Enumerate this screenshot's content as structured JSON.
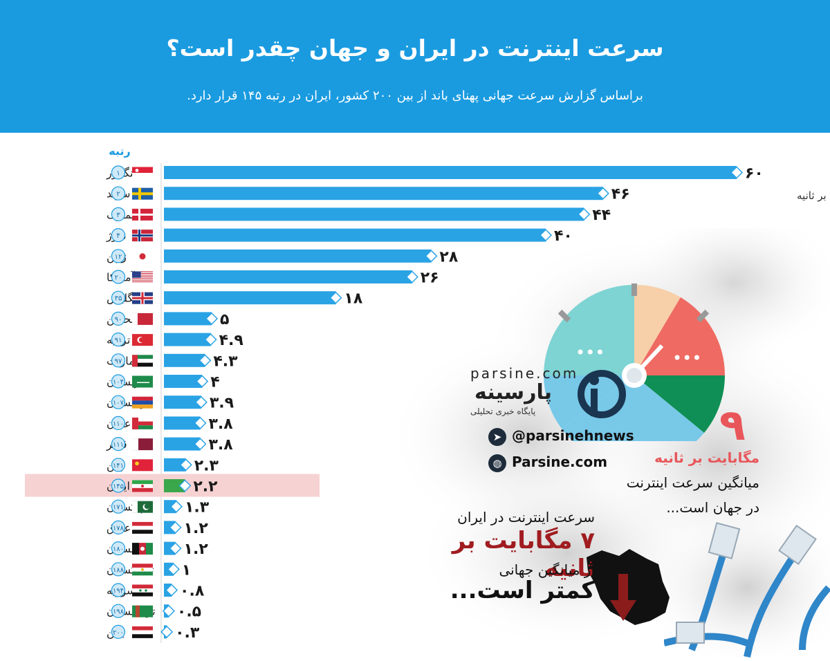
{
  "header": {
    "title": "سرعت اینترنت در ایران و جهان چقدر است؟",
    "subtitle": "براساس گزارش سرعت جهانی پهنای باند از بین ۲۰۰ کشور، ایران در رتبه ۱۴۵ قرار دارد."
  },
  "colors": {
    "header_bg": "#1a9be0",
    "bar": "#2aa3e5",
    "iran_bar": "#3aa84a",
    "iran_highlight": "#f6d2d2",
    "accent_red": "#e8565a",
    "dark_red": "#a01c20"
  },
  "chart_data": {
    "type": "bar",
    "orientation": "horizontal",
    "rank_header": "رتبه",
    "unit": "مگابایت بر ثانیه",
    "highlight": "ایران",
    "rows": [
      {
        "country": "سنگاپور",
        "rank": "۱",
        "value": 60,
        "label": "۶۰",
        "flag": "singapore-flag"
      },
      {
        "country": "سوئد",
        "rank": "۲",
        "value": 46,
        "label": "۴۶",
        "flag": "sweden-flag"
      },
      {
        "country": "دانمارک",
        "rank": "۳",
        "value": 44,
        "label": "۴۴",
        "flag": "denmark-flag"
      },
      {
        "country": "نروژ",
        "rank": "۴",
        "value": 40,
        "label": "۴۰",
        "flag": "norway-flag"
      },
      {
        "country": "ژاپن",
        "rank": "۱۲",
        "value": 28,
        "label": "۲۸",
        "flag": "japan-flag"
      },
      {
        "country": "آمریکا",
        "rank": "۲۰",
        "value": 26,
        "label": "۲۶",
        "flag": "usa-flag"
      },
      {
        "country": "انگلیس",
        "rank": "۳۵",
        "value": 18,
        "label": "۱۸",
        "flag": "uk-flag"
      },
      {
        "country": "بحرین",
        "rank": "۹۰",
        "value": 5,
        "label": "۵",
        "flag": "bahrain-flag"
      },
      {
        "country": "ترکیه",
        "rank": "۹۱",
        "value": 4.9,
        "label": "۴.۹",
        "flag": "turkey-flag"
      },
      {
        "country": "امارات",
        "rank": "۹۷",
        "value": 4.3,
        "label": "۴.۳",
        "flag": "uae-flag"
      },
      {
        "country": "عربستان",
        "rank": "۱۰۴",
        "value": 4,
        "label": "۴",
        "flag": "saudi-flag"
      },
      {
        "country": "ارمنستان",
        "rank": "۱۰۷",
        "value": 3.9,
        "label": "۳.۹",
        "flag": "armenia-flag"
      },
      {
        "country": "عمان",
        "rank": "۱۱۰",
        "value": 3.8,
        "label": "۳.۸",
        "flag": "oman-flag"
      },
      {
        "country": "قطر",
        "rank": "۱۱۱",
        "value": 3.8,
        "label": "۳.۸",
        "flag": "qatar-flag"
      },
      {
        "country": "چین",
        "rank": "۱۴۱",
        "value": 2.3,
        "label": "۲.۳",
        "flag": "china-flag"
      },
      {
        "country": "ایران",
        "rank": "۱۴۵",
        "value": 2.2,
        "label": "۲.۲",
        "flag": "iran-flag"
      },
      {
        "country": "پاکستان",
        "rank": "۱۷۱",
        "value": 1.3,
        "label": "۱.۳",
        "flag": "pakistan-flag"
      },
      {
        "country": "عراق",
        "rank": "۱۷۸",
        "value": 1.2,
        "label": "۱.۲",
        "flag": "iraq-flag"
      },
      {
        "country": "افغانستان",
        "rank": "۱۸۰",
        "value": 1.2,
        "label": "۱.۲",
        "flag": "afghanistan-flag"
      },
      {
        "country": "تاجیکستان",
        "rank": "۱۸۸",
        "value": 1,
        "label": "۱",
        "flag": "tajikistan-flag"
      },
      {
        "country": "سوریه",
        "rank": "۱۹۴",
        "value": 0.8,
        "label": "۰.۸",
        "flag": "syria-flag"
      },
      {
        "country": "ترکمنستان",
        "rank": "۱۹۸",
        "value": 0.5,
        "label": "۰.۵",
        "flag": "turkmenistan-flag"
      },
      {
        "country": "یمن",
        "rank": "۲۰۰",
        "value": 0.3,
        "label": "۰.۳",
        "flag": "yemen-flag"
      }
    ]
  },
  "brand": {
    "url": "parsine.com",
    "name": "پارسینه",
    "tagline": "پایگاه خبری تحلیلی",
    "telegram": "@parsinehnews",
    "website": "Parsine.com"
  },
  "world_avg": {
    "value": "۹",
    "unit": "مگابایت بر ثانیه",
    "text1": "میانگین سرعت اینترنت",
    "text2": "در جهان است..."
  },
  "iran_note": {
    "line1": "سرعت اینترنت در ایران",
    "line2": "۷ مگابایت بر ثانیه",
    "line3": "از میانگین جهانی",
    "line4": "کمتر است..."
  }
}
